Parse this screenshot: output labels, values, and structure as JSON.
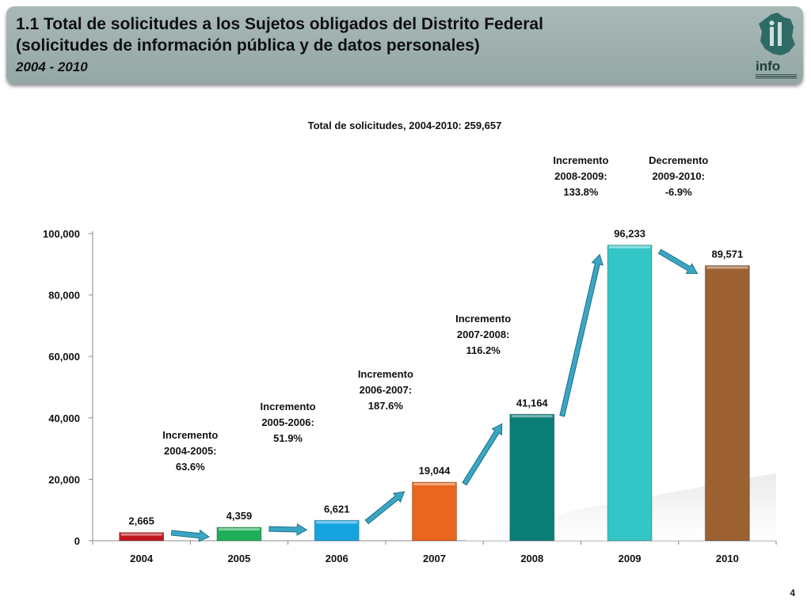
{
  "header": {
    "title_line1": "1.1 Total de solicitudes a los Sujetos obligados del Distrito Federal",
    "title_line2": "(solicitudes de información pública y de datos personales)",
    "title_line3": "2004 - 2010",
    "logo_text": "info"
  },
  "page_number": "4",
  "chart_data": {
    "type": "bar",
    "title": "Total de solicitudes, 2004-2010: 259,657",
    "categories": [
      "2004",
      "2005",
      "2006",
      "2007",
      "2008",
      "2009",
      "2010"
    ],
    "values": [
      2665,
      4359,
      6621,
      19044,
      41164,
      96233,
      89571
    ],
    "value_labels": [
      "2,665",
      "4,359",
      "6,621",
      "19,044",
      "41,164",
      "96,233",
      "89,571"
    ],
    "colors": [
      "#c0161f",
      "#1fae57",
      "#16a3e0",
      "#e8661d",
      "#0b7e78",
      "#33c6c6",
      "#9b6132"
    ],
    "ylim": [
      0,
      100000
    ],
    "yticks": [
      0,
      20000,
      40000,
      60000,
      80000,
      100000
    ],
    "ytick_labels": [
      "0",
      "20,000",
      "40,000",
      "60,000",
      "80,000",
      "100,000"
    ],
    "xlabel": "",
    "ylabel": "",
    "grid": false,
    "annotations": [
      {
        "lines": [
          "Incremento",
          "2004-2005:",
          "63.6%"
        ]
      },
      {
        "lines": [
          "Incremento",
          "2005-2006:",
          "51.9%"
        ]
      },
      {
        "lines": [
          "Incremento",
          "2006-2007:",
          "187.6%"
        ]
      },
      {
        "lines": [
          "Incremento",
          "2007-2008:",
          "116.2%"
        ]
      },
      {
        "lines": [
          "Incremento",
          "2008-2009:",
          "133.8%"
        ]
      },
      {
        "lines": [
          "Decremento",
          "2009-2010:",
          "-6.9%"
        ]
      }
    ],
    "arrow_color": "#3aa6c4"
  }
}
